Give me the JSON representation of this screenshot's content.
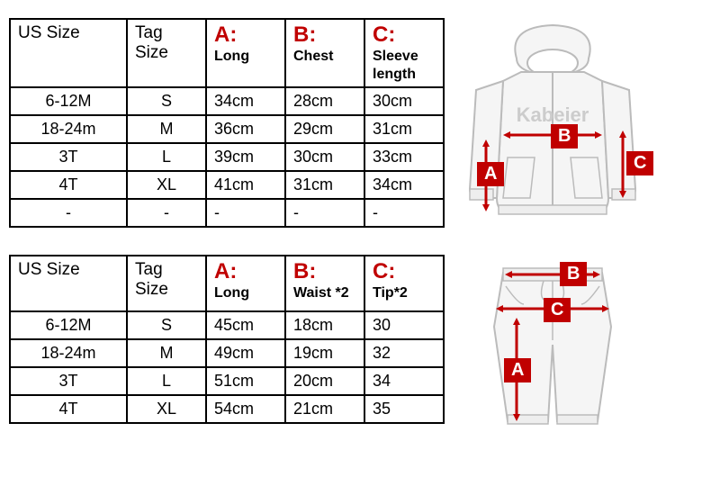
{
  "table1": {
    "headers": {
      "us": "US Size",
      "tag": "Tag Size",
      "a_letter": "A:",
      "a_sub": "Long",
      "b_letter": "B:",
      "b_sub": "Chest",
      "c_letter": "C:",
      "c_sub": "Sleeve length"
    },
    "rows": [
      {
        "us": "6-12M",
        "tag": "S",
        "a": "34cm",
        "b": "28cm",
        "c": "30cm"
      },
      {
        "us": "18-24m",
        "tag": "M",
        "a": "36cm",
        "b": "29cm",
        "c": "31cm"
      },
      {
        "us": "3T",
        "tag": "L",
        "a": "39cm",
        "b": "30cm",
        "c": "33cm"
      },
      {
        "us": "4T",
        "tag": "XL",
        "a": "41cm",
        "b": "31cm",
        "c": "34cm"
      },
      {
        "us": "-",
        "tag": "-",
        "a": "-",
        "b": "-",
        "c": "-"
      }
    ]
  },
  "table2": {
    "headers": {
      "us": "US Size",
      "tag": "Tag Size",
      "a_letter": "A:",
      "a_sub": "Long",
      "b_letter": "B:",
      "b_sub": "Waist *2",
      "c_letter": "C:",
      "c_sub": "Tip*2"
    },
    "rows": [
      {
        "us": "6-12M",
        "tag": "S",
        "a": "45cm",
        "b": "18cm",
        "c": "30"
      },
      {
        "us": "18-24m",
        "tag": "M",
        "a": "49cm",
        "b": "19cm",
        "c": "32"
      },
      {
        "us": "3T",
        "tag": "L",
        "a": "51cm",
        "b": "20cm",
        "c": "34"
      },
      {
        "us": "4T",
        "tag": "XL",
        "a": "54cm",
        "b": "21cm",
        "c": "35"
      }
    ]
  },
  "diagram1": {
    "hoodie_text": "Kabeier",
    "labels": {
      "a": "A",
      "b": "B",
      "c": "C"
    }
  },
  "diagram2": {
    "labels": {
      "a": "A",
      "b": "B",
      "c": "C"
    }
  },
  "colors": {
    "red": "#c00000",
    "border": "#000000",
    "sketch": "#bbbbbb",
    "sketch_fill": "#f5f5f5"
  }
}
